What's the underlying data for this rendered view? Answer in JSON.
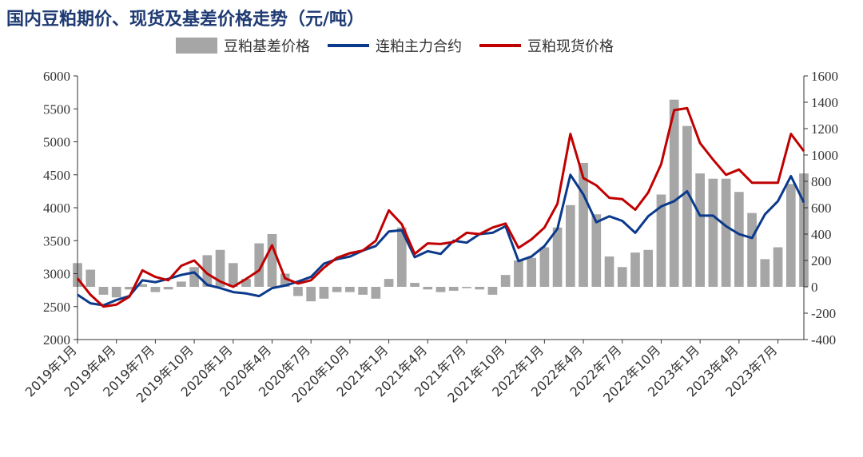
{
  "title": "国内豆粕期价、现货及基差价格走势（元/吨）",
  "chart_data": {
    "type": "line+bar",
    "left_axis": {
      "ylim": [
        2000,
        6000
      ],
      "ticks": [
        2000,
        2500,
        3000,
        3500,
        4000,
        4500,
        5000,
        5500,
        6000
      ]
    },
    "right_axis": {
      "ylim": [
        -400,
        1600
      ],
      "ticks": [
        -400,
        -200,
        0,
        200,
        400,
        600,
        800,
        1000,
        1200,
        1400,
        1600
      ]
    },
    "x_ticks": [
      "2019年1月",
      "2019年4月",
      "2019年7月",
      "2019年10月",
      "2020年1月",
      "2020年4月",
      "2020年7月",
      "2020年10月",
      "2021年1月",
      "2021年4月",
      "2021年7月",
      "2021年10月",
      "2022年1月",
      "2022年4月",
      "2022年7月",
      "2022年10月",
      "2023年1月",
      "2023年4月",
      "2023年7月"
    ],
    "months": [
      "2019-01",
      "2019-02",
      "2019-03",
      "2019-04",
      "2019-05",
      "2019-06",
      "2019-07",
      "2019-08",
      "2019-09",
      "2019-10",
      "2019-11",
      "2019-12",
      "2020-01",
      "2020-02",
      "2020-03",
      "2020-04",
      "2020-05",
      "2020-06",
      "2020-07",
      "2020-08",
      "2020-09",
      "2020-10",
      "2020-11",
      "2020-12",
      "2021-01",
      "2021-02",
      "2021-03",
      "2021-04",
      "2021-05",
      "2021-06",
      "2021-07",
      "2021-08",
      "2021-09",
      "2021-10",
      "2021-11",
      "2021-12",
      "2022-01",
      "2022-02",
      "2022-03",
      "2022-04",
      "2022-05",
      "2022-06",
      "2022-07",
      "2022-08",
      "2022-09",
      "2022-10",
      "2022-11",
      "2022-12",
      "2023-01",
      "2023-02",
      "2023-03",
      "2023-04",
      "2023-05",
      "2023-06",
      "2023-07",
      "2023-08",
      "2023-09"
    ],
    "series": [
      {
        "name": "豆粕基差价格",
        "type": "bar",
        "axis": "right",
        "color": "#a6a6a6",
        "values": [
          180,
          130,
          -60,
          -80,
          -20,
          20,
          -40,
          -20,
          40,
          150,
          240,
          280,
          180,
          60,
          330,
          400,
          100,
          -70,
          -110,
          -90,
          -40,
          -40,
          -60,
          -90,
          60,
          450,
          30,
          -20,
          -40,
          -30,
          -10,
          -20,
          -60,
          90,
          200,
          220,
          300,
          450,
          620,
          940,
          550,
          230,
          150,
          260,
          280,
          700,
          1420,
          1220,
          860,
          820,
          820,
          720,
          560,
          210,
          300,
          780,
          860
        ]
      },
      {
        "name": "连粕主力合约",
        "type": "line",
        "axis": "left",
        "color": "#0b3a8c",
        "values": [
          2680,
          2550,
          2520,
          2600,
          2660,
          2900,
          2870,
          2920,
          2980,
          3020,
          2830,
          2780,
          2720,
          2700,
          2660,
          2780,
          2820,
          2880,
          2950,
          3150,
          3220,
          3260,
          3350,
          3420,
          3640,
          3660,
          3250,
          3340,
          3300,
          3500,
          3470,
          3600,
          3620,
          3720,
          3190,
          3260,
          3420,
          3680,
          4500,
          4200,
          3780,
          3870,
          3800,
          3620,
          3870,
          4020,
          4100,
          4250,
          3880,
          3880,
          3720,
          3600,
          3540,
          3900,
          4100,
          4480,
          4080
        ]
      },
      {
        "name": "豆粕现货价格",
        "type": "line",
        "axis": "left",
        "color": "#c00000",
        "values": [
          2930,
          2680,
          2500,
          2530,
          2650,
          3050,
          2950,
          2900,
          3120,
          3200,
          3000,
          2880,
          2800,
          2920,
          3050,
          3430,
          2930,
          2850,
          2900,
          3090,
          3240,
          3310,
          3350,
          3500,
          3960,
          3750,
          3300,
          3460,
          3450,
          3480,
          3620,
          3600,
          3700,
          3760,
          3390,
          3520,
          3700,
          4060,
          5120,
          4450,
          4340,
          4150,
          4130,
          3970,
          4230,
          4660,
          5480,
          5510,
          4980,
          4730,
          4500,
          4580,
          4380,
          4380,
          4380,
          5120,
          4860
        ]
      }
    ]
  },
  "legend": {
    "basis": "豆粕基差价格",
    "futures": "连粕主力合约",
    "spot": "豆粕现货价格"
  },
  "colors": {
    "bar": "#a6a6a6",
    "futures": "#0b3a8c",
    "spot": "#c00000",
    "title": "#1f3b73"
  }
}
